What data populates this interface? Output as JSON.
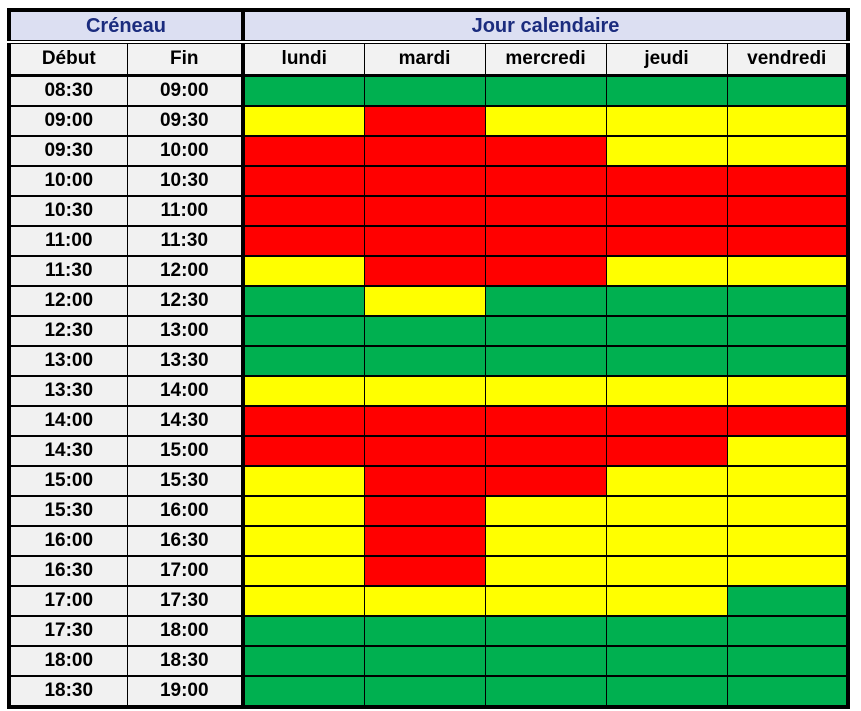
{
  "header": {
    "creneau_label": "Créneau",
    "jour_label": "Jour calendaire",
    "start_label": "Début",
    "end_label": "Fin"
  },
  "colors": {
    "header_bg": "#dcdff2",
    "header_text": "#1b2c7e",
    "subheader_bg": "#f2f2f2",
    "time_cell_bg": "#f1f1f1",
    "border": "#000000",
    "green": "#00b050",
    "yellow": "#ffff00",
    "red": "#ff0000"
  },
  "chart_data": {
    "type": "heatmap",
    "title": "Créneau / Jour calendaire",
    "xlabel": "Jour calendaire",
    "ylabel": "Créneau",
    "columns": [
      "lundi",
      "mardi",
      "mercredi",
      "jeudi",
      "vendredi"
    ],
    "legend": {
      "green": "#00b050",
      "yellow": "#ffff00",
      "red": "#ff0000"
    },
    "rows": [
      {
        "start": "08:30",
        "end": "09:00",
        "values": [
          "green",
          "green",
          "green",
          "green",
          "green"
        ]
      },
      {
        "start": "09:00",
        "end": "09:30",
        "values": [
          "yellow",
          "red",
          "yellow",
          "yellow",
          "yellow"
        ]
      },
      {
        "start": "09:30",
        "end": "10:00",
        "values": [
          "red",
          "red",
          "red",
          "yellow",
          "yellow"
        ]
      },
      {
        "start": "10:00",
        "end": "10:30",
        "values": [
          "red",
          "red",
          "red",
          "red",
          "red"
        ]
      },
      {
        "start": "10:30",
        "end": "11:00",
        "values": [
          "red",
          "red",
          "red",
          "red",
          "red"
        ]
      },
      {
        "start": "11:00",
        "end": "11:30",
        "values": [
          "red",
          "red",
          "red",
          "red",
          "red"
        ]
      },
      {
        "start": "11:30",
        "end": "12:00",
        "values": [
          "yellow",
          "red",
          "red",
          "yellow",
          "yellow"
        ]
      },
      {
        "start": "12:00",
        "end": "12:30",
        "values": [
          "green",
          "yellow",
          "green",
          "green",
          "green"
        ]
      },
      {
        "start": "12:30",
        "end": "13:00",
        "values": [
          "green",
          "green",
          "green",
          "green",
          "green"
        ]
      },
      {
        "start": "13:00",
        "end": "13:30",
        "values": [
          "green",
          "green",
          "green",
          "green",
          "green"
        ]
      },
      {
        "start": "13:30",
        "end": "14:00",
        "values": [
          "yellow",
          "yellow",
          "yellow",
          "yellow",
          "yellow"
        ]
      },
      {
        "start": "14:00",
        "end": "14:30",
        "values": [
          "red",
          "red",
          "red",
          "red",
          "red"
        ]
      },
      {
        "start": "14:30",
        "end": "15:00",
        "values": [
          "red",
          "red",
          "red",
          "red",
          "yellow"
        ]
      },
      {
        "start": "15:00",
        "end": "15:30",
        "values": [
          "yellow",
          "red",
          "red",
          "yellow",
          "yellow"
        ]
      },
      {
        "start": "15:30",
        "end": "16:00",
        "values": [
          "yellow",
          "red",
          "yellow",
          "yellow",
          "yellow"
        ]
      },
      {
        "start": "16:00",
        "end": "16:30",
        "values": [
          "yellow",
          "red",
          "yellow",
          "yellow",
          "yellow"
        ]
      },
      {
        "start": "16:30",
        "end": "17:00",
        "values": [
          "yellow",
          "red",
          "yellow",
          "yellow",
          "yellow"
        ]
      },
      {
        "start": "17:00",
        "end": "17:30",
        "values": [
          "yellow",
          "yellow",
          "yellow",
          "yellow",
          "green"
        ]
      },
      {
        "start": "17:30",
        "end": "18:00",
        "values": [
          "green",
          "green",
          "green",
          "green",
          "green"
        ]
      },
      {
        "start": "18:00",
        "end": "18:30",
        "values": [
          "green",
          "green",
          "green",
          "green",
          "green"
        ]
      },
      {
        "start": "18:30",
        "end": "19:00",
        "values": [
          "green",
          "green",
          "green",
          "green",
          "green"
        ]
      }
    ]
  }
}
